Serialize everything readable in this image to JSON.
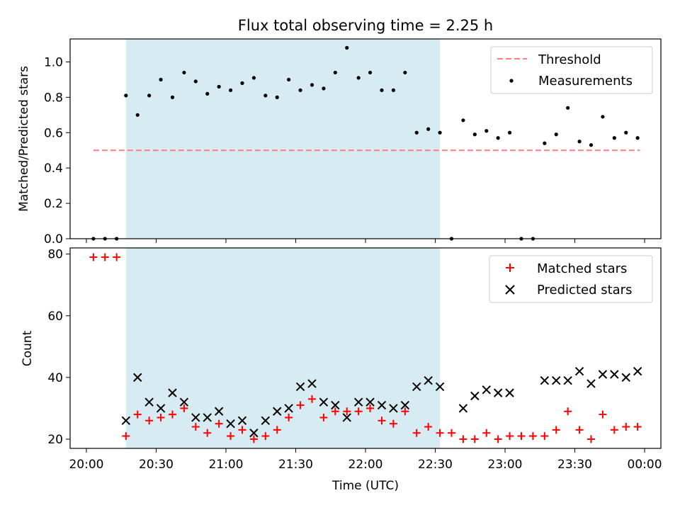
{
  "chart_data": [
    {
      "type": "scatter",
      "title": "Flux total observing time = 2.25 h",
      "xlabel": "",
      "ylabel": "Matched/Predicted stars",
      "ylim": [
        0,
        1.13
      ],
      "xlim": [
        "19:53",
        "00:07"
      ],
      "x_ticks": [
        "20:00",
        "20:30",
        "21:00",
        "21:30",
        "22:00",
        "22:30",
        "23:00",
        "23:30",
        "00:00"
      ],
      "y_ticks": [
        "0.0",
        "0.2",
        "0.4",
        "0.6",
        "0.8",
        "1.0"
      ],
      "shaded_region": {
        "start": "20:17",
        "end": "22:32",
        "color": "#add8e6"
      },
      "legend_position": "top-right",
      "threshold": {
        "name": "Threshold",
        "value": 0.5,
        "x_start": "20:03",
        "x_end": "23:58",
        "color": "#ff7f7f"
      },
      "series": [
        {
          "name": "Measurements",
          "color": "#000000",
          "points": [
            [
              "20:03",
              0
            ],
            [
              "20:08",
              0
            ],
            [
              "20:13",
              0
            ],
            [
              "20:17",
              0.81
            ],
            [
              "20:22",
              0.7
            ],
            [
              "20:27",
              0.81
            ],
            [
              "20:32",
              0.9
            ],
            [
              "20:37",
              0.8
            ],
            [
              "20:42",
              0.94
            ],
            [
              "20:47",
              0.89
            ],
            [
              "20:52",
              0.82
            ],
            [
              "20:57",
              0.86
            ],
            [
              "21:02",
              0.84
            ],
            [
              "21:07",
              0.88
            ],
            [
              "21:12",
              0.91
            ],
            [
              "21:17",
              0.81
            ],
            [
              "21:22",
              0.8
            ],
            [
              "21:27",
              0.9
            ],
            [
              "21:32",
              0.84
            ],
            [
              "21:37",
              0.87
            ],
            [
              "21:42",
              0.85
            ],
            [
              "21:47",
              0.94
            ],
            [
              "21:52",
              1.08
            ],
            [
              "21:57",
              0.91
            ],
            [
              "22:02",
              0.94
            ],
            [
              "22:07",
              0.84
            ],
            [
              "22:12",
              0.84
            ],
            [
              "22:17",
              0.94
            ],
            [
              "22:22",
              0.6
            ],
            [
              "22:27",
              0.62
            ],
            [
              "22:32",
              0.6
            ],
            [
              "22:37",
              0
            ],
            [
              "22:42",
              0.67
            ],
            [
              "22:47",
              0.59
            ],
            [
              "22:52",
              0.61
            ],
            [
              "22:57",
              0.57
            ],
            [
              "23:02",
              0.6
            ],
            [
              "23:07",
              0
            ],
            [
              "23:12",
              0
            ],
            [
              "23:17",
              0.54
            ],
            [
              "23:22",
              0.59
            ],
            [
              "23:27",
              0.74
            ],
            [
              "23:32",
              0.55
            ],
            [
              "23:37",
              0.53
            ],
            [
              "23:42",
              0.69
            ],
            [
              "23:47",
              0.57
            ],
            [
              "23:52",
              0.6
            ],
            [
              "23:57",
              0.57
            ]
          ]
        }
      ]
    },
    {
      "type": "scatter",
      "title": "",
      "xlabel": "Time (UTC)",
      "ylabel": "Count",
      "ylim": [
        17,
        82
      ],
      "xlim": [
        "19:53",
        "00:07"
      ],
      "x_ticks": [
        "20:00",
        "20:30",
        "21:00",
        "21:30",
        "22:00",
        "22:30",
        "23:00",
        "23:30",
        "00:00"
      ],
      "y_ticks": [
        "20",
        "40",
        "60",
        "80"
      ],
      "shaded_region": {
        "start": "20:17",
        "end": "22:32",
        "color": "#add8e6"
      },
      "legend_position": "top-right",
      "series": [
        {
          "name": "Matched stars",
          "color": "#ff0000",
          "marker": "plus",
          "points": [
            [
              "20:03",
              79
            ],
            [
              "20:08",
              79
            ],
            [
              "20:13",
              79
            ],
            [
              "20:17",
              21
            ],
            [
              "20:22",
              28
            ],
            [
              "20:27",
              26
            ],
            [
              "20:32",
              27
            ],
            [
              "20:37",
              28
            ],
            [
              "20:42",
              30
            ],
            [
              "20:47",
              24
            ],
            [
              "20:52",
              22
            ],
            [
              "20:57",
              25
            ],
            [
              "21:02",
              21
            ],
            [
              "21:07",
              23
            ],
            [
              "21:12",
              20
            ],
            [
              "21:17",
              21
            ],
            [
              "21:22",
              23
            ],
            [
              "21:27",
              27
            ],
            [
              "21:32",
              31
            ],
            [
              "21:37",
              33
            ],
            [
              "21:42",
              27
            ],
            [
              "21:47",
              29
            ],
            [
              "21:52",
              29
            ],
            [
              "21:57",
              29
            ],
            [
              "22:02",
              30
            ],
            [
              "22:07",
              26
            ],
            [
              "22:12",
              25
            ],
            [
              "22:17",
              29
            ],
            [
              "22:22",
              22
            ],
            [
              "22:27",
              24
            ],
            [
              "22:32",
              22
            ],
            [
              "22:37",
              22
            ],
            [
              "22:42",
              20
            ],
            [
              "22:47",
              20
            ],
            [
              "22:52",
              22
            ],
            [
              "22:57",
              20
            ],
            [
              "23:02",
              21
            ],
            [
              "23:07",
              21
            ],
            [
              "23:12",
              21
            ],
            [
              "23:17",
              21
            ],
            [
              "23:22",
              23
            ],
            [
              "23:27",
              29
            ],
            [
              "23:32",
              23
            ],
            [
              "23:37",
              20
            ],
            [
              "23:42",
              28
            ],
            [
              "23:47",
              23
            ],
            [
              "23:52",
              24
            ],
            [
              "23:57",
              24
            ]
          ]
        },
        {
          "name": "Predicted stars",
          "color": "#000000",
          "marker": "x",
          "points": [
            [
              "20:17",
              26
            ],
            [
              "20:22",
              40
            ],
            [
              "20:27",
              32
            ],
            [
              "20:32",
              30
            ],
            [
              "20:37",
              35
            ],
            [
              "20:42",
              32
            ],
            [
              "20:47",
              27
            ],
            [
              "20:52",
              27
            ],
            [
              "20:57",
              29
            ],
            [
              "21:02",
              25
            ],
            [
              "21:07",
              26
            ],
            [
              "21:12",
              22
            ],
            [
              "21:17",
              26
            ],
            [
              "21:22",
              29
            ],
            [
              "21:27",
              30
            ],
            [
              "21:32",
              37
            ],
            [
              "21:37",
              38
            ],
            [
              "21:42",
              32
            ],
            [
              "21:47",
              31
            ],
            [
              "21:52",
              27
            ],
            [
              "21:57",
              32
            ],
            [
              "22:02",
              32
            ],
            [
              "22:07",
              31
            ],
            [
              "22:12",
              30
            ],
            [
              "22:17",
              31
            ],
            [
              "22:22",
              37
            ],
            [
              "22:27",
              39
            ],
            [
              "22:32",
              37
            ],
            [
              "22:42",
              30
            ],
            [
              "22:47",
              34
            ],
            [
              "22:52",
              36
            ],
            [
              "22:57",
              35
            ],
            [
              "23:02",
              35
            ],
            [
              "23:17",
              39
            ],
            [
              "23:22",
              39
            ],
            [
              "23:27",
              39
            ],
            [
              "23:32",
              42
            ],
            [
              "23:37",
              38
            ],
            [
              "23:42",
              41
            ],
            [
              "23:47",
              41
            ],
            [
              "23:52",
              40
            ],
            [
              "23:57",
              42
            ]
          ]
        }
      ]
    }
  ]
}
